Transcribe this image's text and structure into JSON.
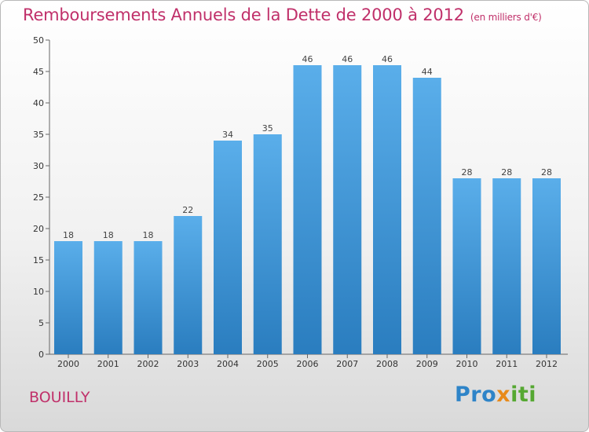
{
  "header": {
    "title": "Remboursements Annuels de la Dette de 2000 à 2012",
    "unit": "(en milliers d'€)"
  },
  "footer": {
    "location": "BOUILLY",
    "brand": "Proxiti"
  },
  "colors": {
    "title": "#c0306a",
    "bar_top": "#5aaeea",
    "bar_bottom": "#2a7dbf"
  },
  "chart_data": {
    "type": "bar",
    "categories": [
      "2000",
      "2001",
      "2002",
      "2003",
      "2004",
      "2005",
      "2006",
      "2007",
      "2008",
      "2009",
      "2010",
      "2011",
      "2012"
    ],
    "values": [
      18,
      18,
      18,
      22,
      34,
      35,
      46,
      46,
      46,
      44,
      28,
      28,
      28
    ],
    "ylim": [
      0,
      50
    ],
    "yticks": [
      0,
      5,
      10,
      15,
      20,
      25,
      30,
      35,
      40,
      45,
      50
    ],
    "grid": false,
    "data_labels": true
  }
}
